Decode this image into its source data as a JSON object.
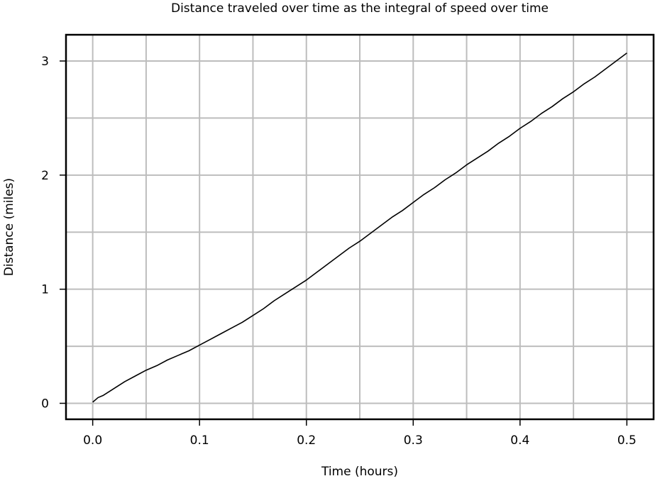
{
  "chart_data": {
    "type": "line",
    "title": "Distance traveled over time as the integral of speed over time",
    "xlabel": "Time (hours)",
    "ylabel": "Distance (miles)",
    "xlim": [
      -0.025,
      0.525
    ],
    "ylim": [
      -0.14,
      3.23
    ],
    "x_ticks": [
      0.0,
      0.1,
      0.2,
      0.3,
      0.4,
      0.5
    ],
    "x_tick_labels": [
      "0.0",
      "0.1",
      "0.2",
      "0.3",
      "0.4",
      "0.5"
    ],
    "y_ticks": [
      0,
      1,
      2,
      3
    ],
    "y_tick_labels": [
      "0",
      "1",
      "2",
      "3"
    ],
    "grid": true,
    "grid_x_minor": [
      0.05,
      0.15,
      0.25,
      0.35,
      0.45
    ],
    "grid_y_minor": [
      0.5,
      1.5,
      2.5
    ],
    "line_color": "#000000",
    "grid_color": "#bdbdbd",
    "series": [
      {
        "x": [
          0.0,
          0.005,
          0.01,
          0.02,
          0.03,
          0.04,
          0.05,
          0.06,
          0.07,
          0.08,
          0.09,
          0.1,
          0.11,
          0.12,
          0.13,
          0.14,
          0.15,
          0.16,
          0.17,
          0.18,
          0.19,
          0.2,
          0.21,
          0.22,
          0.23,
          0.24,
          0.25,
          0.26,
          0.27,
          0.28,
          0.29,
          0.3,
          0.31,
          0.32,
          0.33,
          0.34,
          0.35,
          0.36,
          0.37,
          0.38,
          0.39,
          0.4,
          0.41,
          0.42,
          0.43,
          0.44,
          0.45,
          0.46,
          0.47,
          0.48,
          0.49,
          0.5
        ],
        "y": [
          0.01,
          0.05,
          0.07,
          0.13,
          0.19,
          0.24,
          0.29,
          0.33,
          0.38,
          0.42,
          0.46,
          0.51,
          0.56,
          0.61,
          0.66,
          0.71,
          0.77,
          0.83,
          0.9,
          0.96,
          1.02,
          1.08,
          1.15,
          1.22,
          1.29,
          1.36,
          1.42,
          1.49,
          1.56,
          1.63,
          1.69,
          1.76,
          1.83,
          1.89,
          1.96,
          2.02,
          2.09,
          2.15,
          2.21,
          2.28,
          2.34,
          2.41,
          2.47,
          2.54,
          2.6,
          2.67,
          2.73,
          2.8,
          2.86,
          2.93,
          3.0,
          3.07
        ]
      }
    ]
  }
}
